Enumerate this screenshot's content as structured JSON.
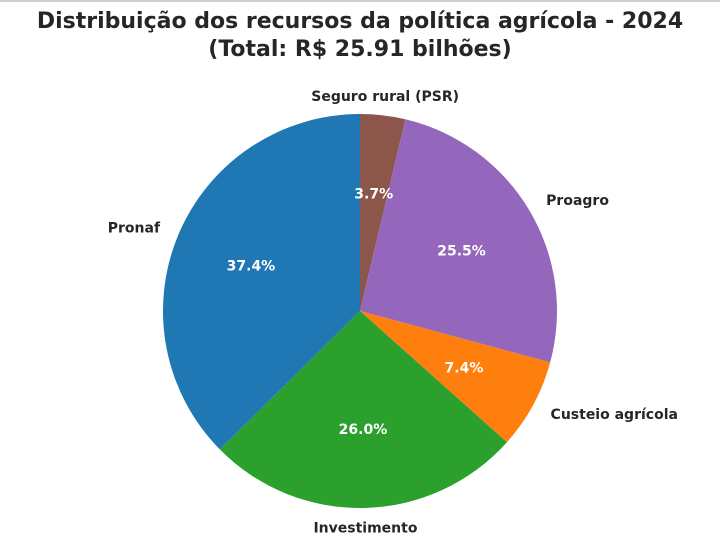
{
  "chart_data": {
    "type": "pie",
    "title": "Distribuição dos recursos da política agrícola - 2024",
    "subtitle": "(Total: R$ 25.91 bilhões)",
    "start_angle_deg": 90,
    "direction": "clockwise",
    "slices": [
      {
        "label": "Seguro rural (PSR)",
        "value": 3.7,
        "pct_label": "3.7%",
        "color": "#8c564b"
      },
      {
        "label": "Proagro",
        "value": 25.5,
        "pct_label": "25.5%",
        "color": "#9467bd"
      },
      {
        "label": "Custeio agrícola",
        "value": 7.4,
        "pct_label": "7.4%",
        "color": "#ff7f0e"
      },
      {
        "label": "Investimento",
        "value": 26.0,
        "pct_label": "26.0%",
        "color": "#2ca02c"
      },
      {
        "label": "Pronaf",
        "value": 37.4,
        "pct_label": "37.4%",
        "color": "#1f77b4"
      }
    ],
    "total": "R$ 25.91 bilhões",
    "legend": "none (labels outside slices)"
  },
  "title": {
    "line1": "Distribuição dos recursos da política agrícola - 2024",
    "line2": "(Total: R$ 25.91 bilhões)"
  }
}
